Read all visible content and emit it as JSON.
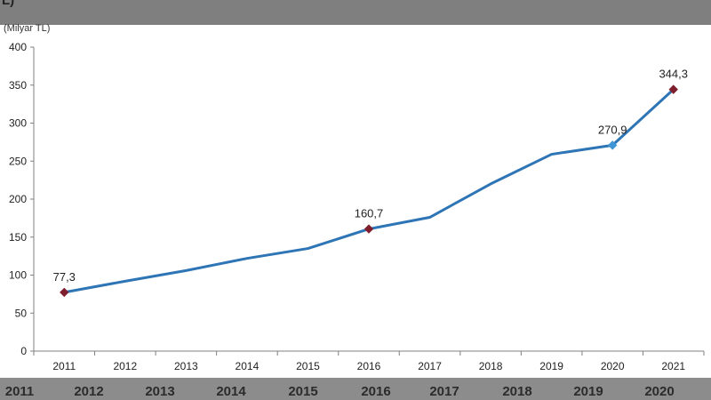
{
  "header": {
    "title_fragment": "L)"
  },
  "chart_data": {
    "type": "line",
    "unit_label": "(Milyar TL)",
    "x": [
      "2011",
      "2012",
      "2013",
      "2014",
      "2015",
      "2016",
      "2017",
      "2018",
      "2019",
      "2020",
      "2021"
    ],
    "series": [
      {
        "values": [
          77.3,
          92,
          106,
          122,
          135,
          160.7,
          176,
          220,
          259,
          270.9,
          344.3
        ]
      }
    ],
    "data_labels": [
      {
        "index": 0,
        "text": "77,3"
      },
      {
        "index": 5,
        "text": "160,7"
      },
      {
        "index": 9,
        "text": "270,9"
      },
      {
        "index": 10,
        "text": "344,3"
      }
    ],
    "yticks": [
      0,
      50,
      100,
      150,
      200,
      250,
      300,
      350,
      400
    ],
    "ylim": [
      0,
      400
    ],
    "line_color": "#2e75b6",
    "marker_color": "#7f1f2e",
    "marker_highlight_color": "#3f96d6"
  },
  "bottom_strip": {
    "labels": [
      "2011",
      "2012",
      "2013",
      "2014",
      "2015",
      "2016",
      "2017",
      "2018",
      "2019",
      "2020"
    ]
  }
}
